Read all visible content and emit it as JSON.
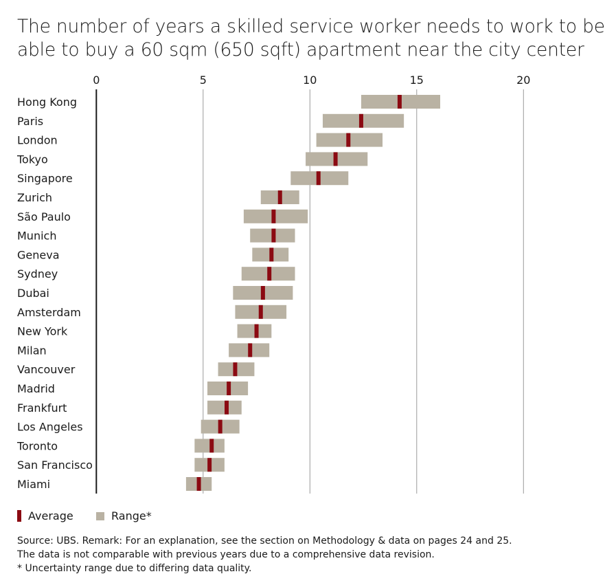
{
  "chart_data": {
    "type": "bar",
    "subtype": "range-with-average",
    "title": "The number of years a skilled service worker needs to work to be able to buy a 60 sqm (650 sqft) apartment near the city center",
    "title_lines": [
      "The number of years a skilled service worker needs to work to be",
      "able to buy a 60 sqm (650 sqft) apartment near the city center"
    ],
    "xlim": [
      0,
      20
    ],
    "xticks": [
      "0",
      "5",
      "10",
      "15",
      "20"
    ],
    "x_tick_values": [
      0,
      5,
      10,
      15,
      20
    ],
    "axis_position": "top",
    "grid": true,
    "categories": [
      "Hong Kong",
      "Paris",
      "London",
      "Tokyo",
      "Singapore",
      "Zurich",
      "São Paulo",
      "Munich",
      "Geneva",
      "Sydney",
      "Dubai",
      "Amsterdam",
      "New York",
      "Milan",
      "Vancouver",
      "Madrid",
      "Frankfurt",
      "Los Angeles",
      "Toronto",
      "San Francisco",
      "Miami"
    ],
    "series": [
      {
        "name": "Average",
        "color": "#8b0a12",
        "values": [
          14.2,
          12.4,
          11.8,
          11.2,
          10.4,
          8.6,
          8.3,
          8.3,
          8.2,
          8.1,
          7.8,
          7.7,
          7.5,
          7.2,
          6.5,
          6.2,
          6.1,
          5.8,
          5.4,
          5.3,
          4.8
        ]
      },
      {
        "name": "Range*",
        "color": "#b9b2a3",
        "low": [
          12.4,
          10.6,
          10.3,
          9.8,
          9.1,
          7.7,
          6.9,
          7.2,
          7.3,
          6.8,
          6.4,
          6.5,
          6.6,
          6.2,
          5.7,
          5.2,
          5.2,
          4.9,
          4.6,
          4.6,
          4.2
        ],
        "high": [
          16.1,
          14.4,
          13.4,
          12.7,
          11.8,
          9.5,
          9.9,
          9.3,
          9.0,
          9.3,
          9.2,
          8.9,
          8.2,
          8.1,
          7.4,
          7.1,
          6.8,
          6.7,
          6.0,
          6.0,
          5.4
        ]
      }
    ],
    "legend_placement": "bottom-left"
  },
  "legend": {
    "average": "Average",
    "range": "Range*"
  },
  "footnote": [
    "Source: UBS. Remark: For an explanation, see the section on Methodology & data on pages 24 and 25.",
    "The data is not comparable with previous years due to a comprehensive data revision.",
    "* Uncertainty range due to differing data quality."
  ]
}
